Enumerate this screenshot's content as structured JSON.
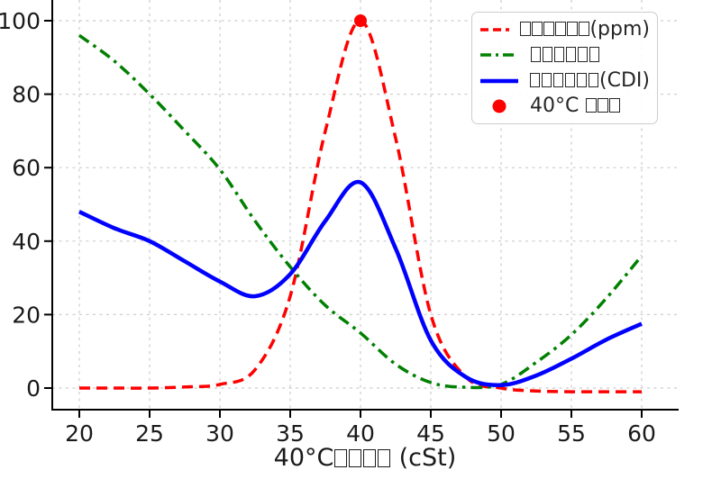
{
  "figure": {
    "xlabel": "40°C□□□□ (cSt)",
    "background": "#ffffff",
    "text_color": "#1a1a1a",
    "grid_color": "#cccccc",
    "spine_color": "#000000"
  },
  "legend": {
    "position": "upper right",
    "items": [
      {
        "label": "□□□□□□(ppm)",
        "color": "#ff0000",
        "style": "dashed"
      },
      {
        "label": "□□□□□□",
        "color": "#008000",
        "style": "dashdot"
      },
      {
        "label": "□□□□□□(CDI)",
        "color": "#0000ff",
        "style": "solid"
      },
      {
        "label": "40°C □□□",
        "color": "#ff0000",
        "style": "marker"
      }
    ]
  },
  "chart_data": {
    "type": "line",
    "title": "",
    "xlabel": "40°C□□□□ (cSt)",
    "ylabel": "",
    "xlim": [
      18,
      62.6
    ],
    "ylim": [
      -6,
      105
    ],
    "x_ticks": [
      20,
      25,
      30,
      35,
      40,
      45,
      50,
      55,
      60
    ],
    "y_ticks": [
      0,
      20,
      40,
      60,
      80,
      100
    ],
    "grid": true,
    "legend_position": "upper right",
    "x": [
      20,
      22.5,
      25,
      27.5,
      30,
      32.5,
      35,
      37.5,
      40,
      42.5,
      45,
      47.5,
      50,
      52.5,
      55,
      57.5,
      60
    ],
    "series": [
      {
        "name": "□□□□□□(ppm)",
        "color": "#ff0000",
        "style": "dashed",
        "values": [
          0,
          0,
          0,
          0.3,
          1,
          5,
          25,
          70,
          100,
          68,
          20,
          3,
          0,
          -0.8,
          -1,
          -1,
          -1
        ]
      },
      {
        "name": "□□□□□□",
        "color": "#008000",
        "style": "dashdot",
        "values": [
          96,
          89,
          80,
          70,
          59.5,
          45.5,
          33,
          22.5,
          15,
          6.5,
          1.5,
          0.2,
          1,
          7,
          14.5,
          24.5,
          36
        ]
      },
      {
        "name": "□□□□□□(CDI)",
        "color": "#0000ff",
        "style": "solid",
        "values": [
          48,
          43.5,
          40,
          34.5,
          29,
          25,
          31,
          45.5,
          56,
          38,
          13,
          3,
          0.8,
          3.4,
          8,
          13.2,
          17.5
        ]
      }
    ],
    "marker": {
      "name": "40°C □□□",
      "x": 40,
      "y": 100,
      "color": "#ff0000"
    }
  }
}
